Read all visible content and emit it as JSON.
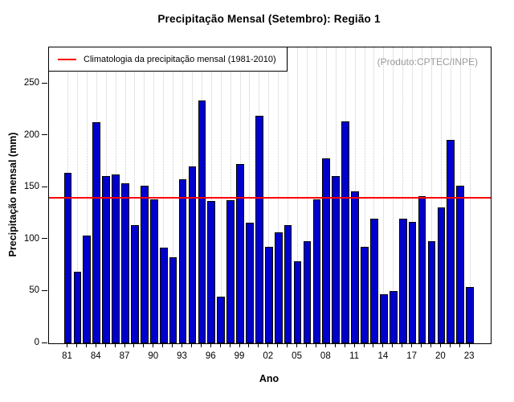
{
  "chart_data": {
    "type": "bar",
    "title": "Precipitação Mensal (Setembro): Região 1",
    "xlabel": "Ano",
    "ylabel": "Precipitação mensal (mm)",
    "source_note": "(Produto:CPTEC/INPE)",
    "legend": {
      "position": "topleft",
      "entries": [
        {
          "label": "Climatologia da precipitação mensal (1981-2010)",
          "type": "line",
          "color": "#ff0000"
        }
      ]
    },
    "categories": [
      "81",
      "82",
      "83",
      "84",
      "85",
      "86",
      "87",
      "88",
      "89",
      "90",
      "91",
      "92",
      "93",
      "94",
      "95",
      "96",
      "97",
      "98",
      "99",
      "00",
      "01",
      "02",
      "03",
      "04",
      "05",
      "06",
      "07",
      "08",
      "09",
      "10",
      "11",
      "12",
      "13",
      "14",
      "15",
      "16",
      "17",
      "18",
      "19",
      "20",
      "21",
      "22",
      "23"
    ],
    "values": [
      164,
      69,
      104,
      213,
      161,
      163,
      154,
      114,
      152,
      139,
      92,
      83,
      158,
      170,
      234,
      137,
      45,
      138,
      173,
      116,
      219,
      93,
      107,
      114,
      79,
      98,
      139,
      178,
      161,
      214,
      146,
      93,
      120,
      47,
      50,
      120,
      117,
      142,
      98,
      131,
      196,
      152,
      54
    ],
    "ylim": [
      0,
      285
    ],
    "yticks": [
      0,
      50,
      100,
      150,
      200,
      250
    ],
    "xtick_label_step": 3,
    "grid": "vertical-dotted",
    "bar_color": "#0000cd",
    "bar_border_color": "#000000",
    "reference_line": {
      "value": 140,
      "color": "#ff0000"
    }
  }
}
